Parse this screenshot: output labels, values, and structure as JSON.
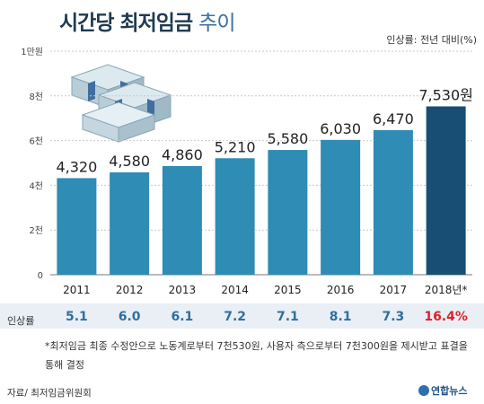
{
  "header": {
    "title_bold": "시간당 최저임금",
    "title_light": "추이",
    "rate_unit": "인상률: 전년 대비(%)"
  },
  "chart_data": {
    "type": "bar",
    "categories": [
      "2011",
      "2012",
      "2013",
      "2014",
      "2015",
      "2016",
      "2017",
      "2018년*"
    ],
    "values": [
      4320,
      4580,
      4860,
      5210,
      5580,
      6030,
      6470,
      7530
    ],
    "value_labels": [
      "4,320",
      "4,580",
      "4,860",
      "5,210",
      "5,580",
      "6,030",
      "6,470",
      "7,530원"
    ],
    "ylim": [
      0,
      10000
    ],
    "yticks": [
      {
        "value": 0,
        "label": "0"
      },
      {
        "value": 2000,
        "label": "2천"
      },
      {
        "value": 4000,
        "label": "4천"
      },
      {
        "value": 6000,
        "label": "6천"
      },
      {
        "value": 8000,
        "label": "8천"
      },
      {
        "value": 10000,
        "label": "1만원"
      }
    ],
    "colors": {
      "bar": "#2e8cb5",
      "highlight_bar": "#184e73",
      "grid": "#c9c9c9"
    },
    "highlight_index": 7
  },
  "rates": {
    "label": "인상률",
    "values": [
      "5.1",
      "6.0",
      "6.1",
      "7.2",
      "7.1",
      "8.1",
      "7.3",
      "16.4%"
    ],
    "highlight_index": 7
  },
  "footnote": "*최저임금 최종 수정안으로 노동계로부터 7천530원, 사용자 측으로부터 7천300원을 제시받고 표결을 통해 결정",
  "source": "자료/ 최저임금위원회",
  "logo": "연합뉴스"
}
